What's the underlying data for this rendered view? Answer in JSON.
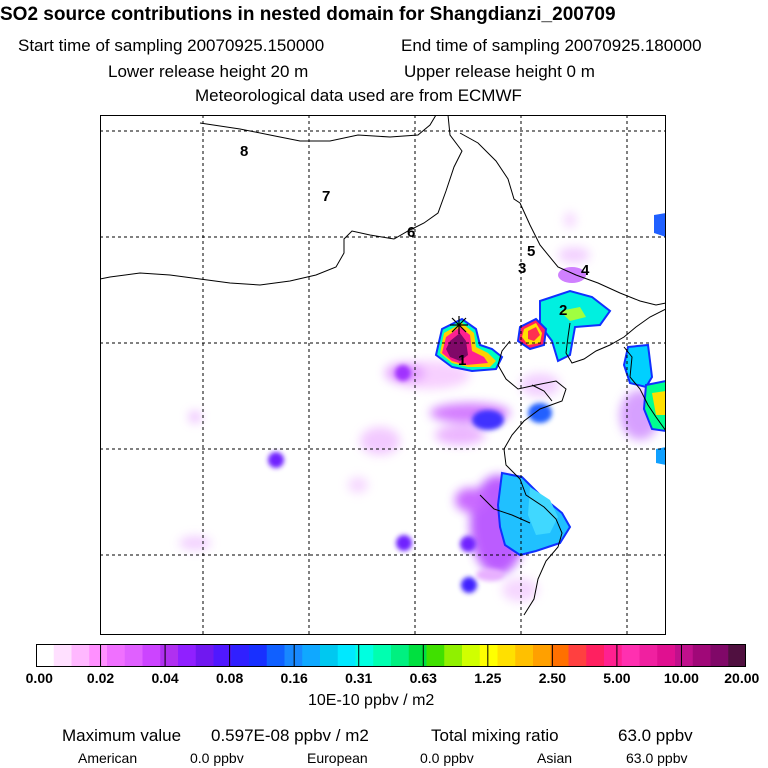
{
  "header": {
    "title": "SO2 source contributions in nested domain for Shangdianzi_200709",
    "start_label": "Start time of sampling 20070925.150000",
    "end_label": "End time of sampling 20070925.180000",
    "lower_label": "Lower release height   20 m",
    "upper_label": "Upper release height    0 m",
    "met_label": "Meteorological data used are from ECMWF"
  },
  "map": {
    "trajectory_points": [
      "1",
      "2",
      "3",
      "4",
      "5",
      "6",
      "7",
      "8"
    ],
    "receptor_marker": "x-mark"
  },
  "colorbar": {
    "ticks": [
      "0.00",
      "0.02",
      "0.04",
      "0.08",
      "0.16",
      "0.31",
      "0.63",
      "1.25",
      "2.50",
      "5.00",
      "10.00",
      "20.00"
    ],
    "unit": "10E-10 ppbv / m2",
    "colors": [
      "#ffffff",
      "#ffe0ff",
      "#ffb8ff",
      "#ff90ff",
      "#f070ff",
      "#e060ff",
      "#cc44ff",
      "#b030f0",
      "#9020ff",
      "#7018f0",
      "#5018ff",
      "#3020ff",
      "#1830ff",
      "#1060ff",
      "#1888ff",
      "#10a8ff",
      "#00c8f0",
      "#00e8ff",
      "#00ffe0",
      "#00ffb0",
      "#00f080",
      "#00e040",
      "#40e000",
      "#90f000",
      "#d0ff00",
      "#ffff00",
      "#ffe000",
      "#ffc000",
      "#ffa000",
      "#ff7000",
      "#ff4040",
      "#ff2060",
      "#ff2090",
      "#ff30b0",
      "#f020a0",
      "#e01090",
      "#c0108c",
      "#a00878",
      "#800868",
      "#501040"
    ]
  },
  "summary": {
    "max_label": "Maximum value",
    "max_value": "0.597E-08 ppbv / m2",
    "total_label": "Total mixing ratio",
    "total_value": "63.0 ppbv",
    "regions": [
      {
        "name": "American",
        "value": "0.0 ppbv"
      },
      {
        "name": "European",
        "value": "0.0 ppbv"
      },
      {
        "name": "Asian",
        "value": "63.0 ppbv"
      }
    ]
  }
}
